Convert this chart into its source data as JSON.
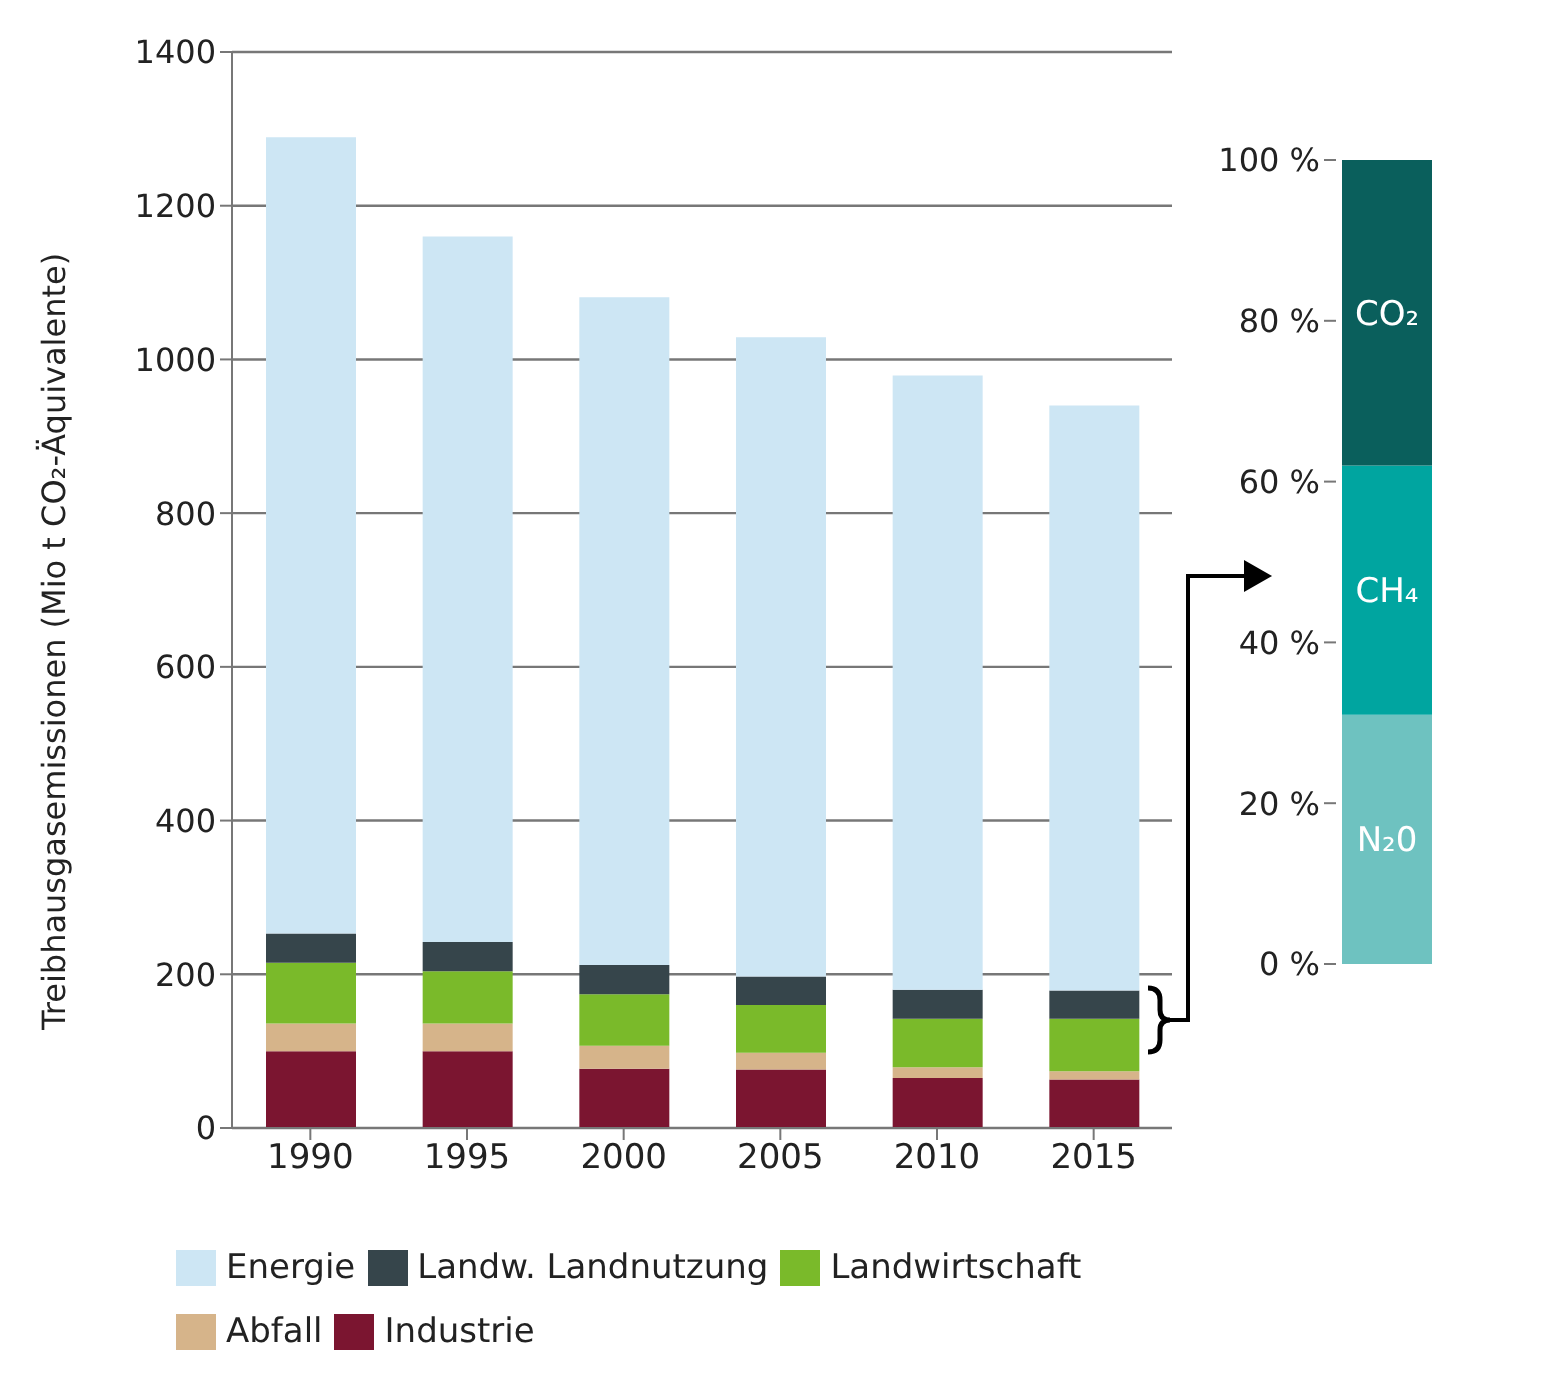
{
  "chart_data": [
    {
      "type": "bar",
      "ylabel": "Treibhausgasemissionen (Mio t CO₂-Äquivalente)",
      "categories": [
        "1990",
        "1995",
        "2000",
        "2005",
        "2010",
        "2015"
      ],
      "stacked": true,
      "ylim": [
        0,
        1400
      ],
      "yticks": [
        0,
        200,
        400,
        600,
        800,
        1000,
        1200,
        1400
      ],
      "grid": "y",
      "legend": "bottom",
      "series": [
        {
          "name": "Industrie",
          "color": "#7b1530",
          "values": [
            100,
            100,
            77,
            76,
            65,
            63
          ]
        },
        {
          "name": "Abfall",
          "color": "#d6b48a",
          "values": [
            36,
            36,
            30,
            22,
            14,
            11
          ]
        },
        {
          "name": "Landwirtschaft",
          "color": "#7aba2a",
          "values": [
            79,
            68,
            67,
            62,
            63,
            68
          ]
        },
        {
          "name": "Landw. Landnutzung",
          "color": "#36454b",
          "values": [
            38,
            38,
            38,
            37,
            38,
            37
          ]
        },
        {
          "name": "Energie",
          "color": "#cde6f4",
          "values": [
            1036,
            918,
            869,
            832,
            799,
            761
          ]
        }
      ]
    },
    {
      "type": "bar",
      "categories": [
        null
      ],
      "stacked": true,
      "ylim": [
        0,
        100
      ],
      "yticks": [
        {
          "value": 0,
          "label": "0 %"
        },
        {
          "value": 20,
          "label": "20 %"
        },
        {
          "value": 40,
          "label": "40 %"
        },
        {
          "value": 60,
          "label": "60 %"
        },
        {
          "value": 80,
          "label": "80 %"
        },
        {
          "value": 100,
          "label": "100 %"
        }
      ],
      "tick_labels": "y",
      "legend": false,
      "series": [
        {
          "name": "N₂0",
          "color": "#6ec2c0",
          "values": [
            31
          ]
        },
        {
          "name": "CH₄",
          "color": "#00a5a0",
          "values": [
            31
          ]
        },
        {
          "name": "CO₂",
          "color": "#0a5f5c",
          "values": [
            38
          ]
        }
      ]
    }
  ]
}
